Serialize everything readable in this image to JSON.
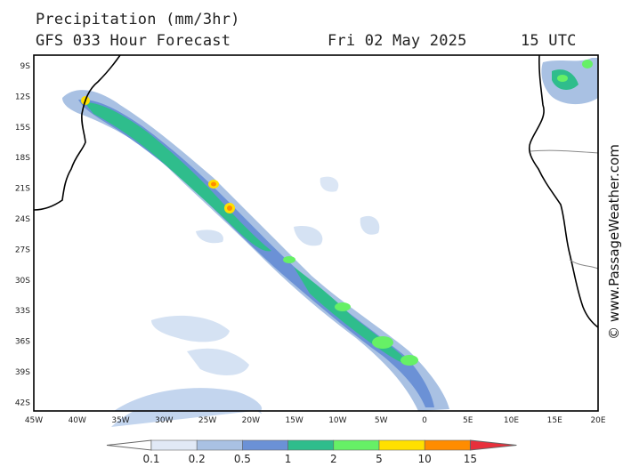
{
  "header": {
    "title": "Precipitation (mm/3hr)",
    "forecast": "GFS 033 Hour Forecast",
    "date": "Fri 02 May 2025",
    "time": "15 UTC"
  },
  "watermark": "© www.PassageWeather.com",
  "axes": {
    "lat_labels": [
      "9S",
      "12S",
      "15S",
      "18S",
      "21S",
      "24S",
      "27S",
      "30S",
      "33S",
      "36S",
      "39S",
      "42S"
    ],
    "lon_labels": [
      "45W",
      "40W",
      "35W",
      "30W",
      "25W",
      "20W",
      "15W",
      "10W",
      "5W",
      "0",
      "5E",
      "10E",
      "15E",
      "20E"
    ]
  },
  "legend": {
    "labels": [
      "0.1",
      "0.2",
      "0.5",
      "1",
      "2",
      "5",
      "10",
      "15"
    ],
    "colors": [
      "#ffffff",
      "#e1e9f6",
      "#a9c1e3",
      "#6b91d6",
      "#2fbd8c",
      "#66f066",
      "#ffe000",
      "#ff8c00",
      "#e8303c"
    ]
  },
  "colors": {
    "land_border": "#000000",
    "frame": "#000000"
  }
}
